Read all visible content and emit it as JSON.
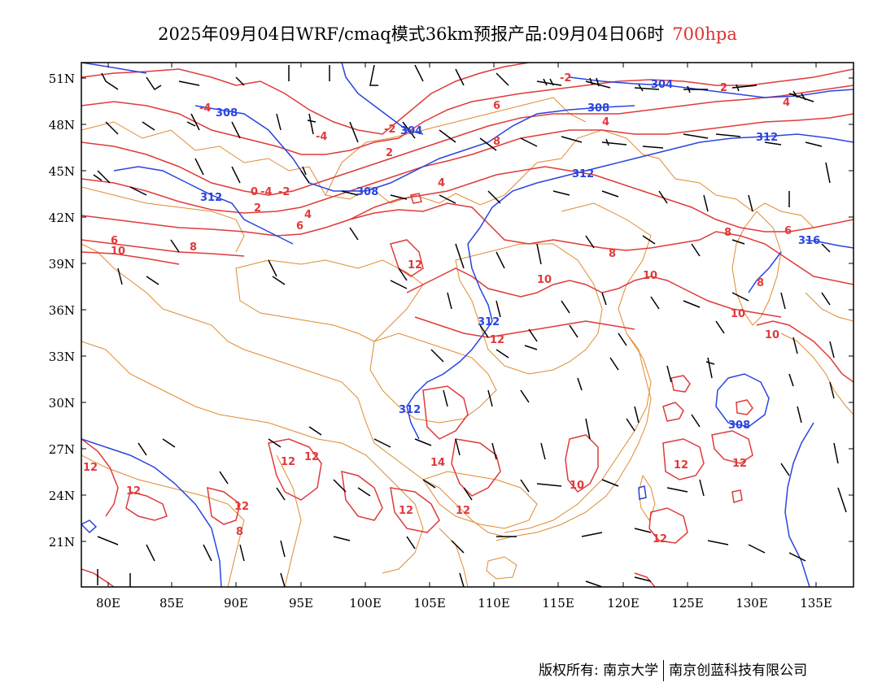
{
  "title": {
    "main": "2025年09月04日WRF/cmaq模式36km预报产品:09月04日06时",
    "level": "700hpa"
  },
  "colors": {
    "temperature": "#e03a3a",
    "geopotential": "#2a44e0",
    "boundary": "#e08a30",
    "wind": "#000000"
  },
  "axes": {
    "lat_labels": [
      "51N",
      "48N",
      "45N",
      "42N",
      "39N",
      "36N",
      "33N",
      "30N",
      "27N",
      "24N",
      "21N"
    ],
    "lon_labels": [
      "80E",
      "85E",
      "90E",
      "95E",
      "100E",
      "105E",
      "110E",
      "115E",
      "120E",
      "125E",
      "130E",
      "135E"
    ]
  },
  "contours": {
    "temperature_labels": [
      "-4",
      "-4",
      "-2",
      "-2",
      "2",
      "2",
      "4",
      "4",
      "6",
      "6",
      "8",
      "8",
      "8",
      "6",
      "4",
      "-4",
      "0",
      "-2",
      "2",
      "4",
      "6",
      "10",
      "12",
      "10",
      "12",
      "8",
      "10",
      "12",
      "10",
      "12",
      "8",
      "8",
      "10",
      "12",
      "12",
      "12",
      "14",
      "12",
      "12",
      "12",
      "12",
      "10",
      "12",
      "12",
      "12",
      "12",
      "12",
      "-2",
      "10"
    ],
    "height_labels": [
      "308",
      "304",
      "304",
      "308",
      "312",
      "312",
      "308",
      "316",
      "312",
      "312",
      "312",
      "308"
    ]
  },
  "footer": {
    "copyright": "版权所有: 南京大学",
    "company": "南京创蓝科技有限公司"
  }
}
